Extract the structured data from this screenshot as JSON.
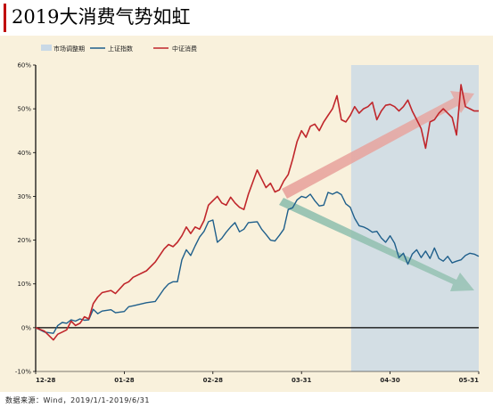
{
  "title": "2019大消费气势如虹",
  "source": "数据来源：Wind，2019/1/1-2019/6/31",
  "colors": {
    "title_accent": "#c00000",
    "plot_background": "#f9f1dc",
    "highlight_band": "#c9d9e6",
    "shanghai": "#1f5f8b",
    "consumer": "#c0262b",
    "arrow_up": "#e8a29c",
    "arrow_down": "#8fbfae"
  },
  "chart_data": {
    "type": "line",
    "title": "2019大消费气势如虹",
    "xlabel": "",
    "ylabel": "",
    "ylim": [
      -10,
      60
    ],
    "yticks": [
      -10,
      0,
      10,
      20,
      30,
      40,
      50,
      60
    ],
    "ytick_labels": [
      "-10%",
      "0%",
      "10%",
      "20%",
      "30%",
      "40%",
      "50%",
      "60%"
    ],
    "xtick_labels": [
      "12-28",
      "01-28",
      "02-28",
      "03-31",
      "04-30",
      "05-31"
    ],
    "xlim": [
      0,
      100
    ],
    "xtick_positions": [
      0,
      20,
      40,
      60,
      80,
      100
    ],
    "grid": false,
    "legend_position": "top-left",
    "shaded_region": {
      "label": "市场调整期",
      "x_start": 71.2,
      "x_end": 100
    },
    "series": [
      {
        "name": "上证指数",
        "x": [
          0,
          2,
          4,
          5,
          6,
          7,
          8,
          9,
          10,
          11,
          12,
          13,
          14,
          15,
          17,
          18,
          20,
          21,
          22,
          25,
          27,
          29,
          30,
          31,
          32,
          33,
          34,
          35,
          36,
          37,
          38,
          39,
          40,
          41,
          42,
          43,
          44,
          45,
          46,
          47,
          48,
          50,
          51,
          52,
          53,
          54,
          55,
          56,
          57,
          58,
          59,
          60,
          61,
          62,
          63,
          64,
          65,
          66,
          67,
          68,
          69,
          70,
          71,
          72,
          73,
          74,
          75,
          76,
          77,
          78,
          79,
          80,
          81,
          82,
          83,
          84,
          85,
          86,
          87,
          88,
          89,
          90,
          91,
          92,
          93,
          94,
          95,
          96,
          97,
          98,
          99,
          100
        ],
        "values": [
          0,
          -1,
          -1.3,
          0.5,
          1.2,
          1.0,
          1.8,
          1.5,
          2.0,
          1.7,
          1.8,
          4.2,
          3.2,
          3.8,
          4.1,
          3.4,
          3.7,
          4.8,
          5.0,
          5.7,
          6.0,
          8.9,
          10.0,
          10.5,
          10.5,
          15.5,
          17.8,
          16.5,
          18.7,
          20.7,
          22.0,
          24.2,
          24.6,
          19.5,
          20.4,
          21.8,
          23.0,
          24.0,
          21.9,
          22.5,
          24.0,
          24.2,
          22.5,
          21.3,
          20.0,
          19.8,
          21.1,
          22.5,
          27.0,
          27.4,
          29.2,
          30.0,
          29.7,
          30.5,
          29.0,
          27.8,
          28.0,
          30.9,
          30.5,
          31.0,
          30.4,
          28.3,
          27.5,
          25.0,
          23.3,
          23.0,
          22.5,
          21.8,
          22.0,
          20.5,
          19.5,
          21.0,
          19.3,
          16.0,
          17.0,
          14.5,
          16.8,
          17.8,
          16.0,
          17.5,
          15.8,
          18.2,
          15.8,
          15.2,
          16.3,
          14.8,
          15.2,
          15.5,
          16.5,
          17.0,
          16.8,
          16.3
        ]
      },
      {
        "name": "中证消费",
        "x": [
          0,
          2,
          4,
          5,
          6,
          7,
          8,
          9,
          10,
          11,
          12,
          13,
          14,
          15,
          17,
          18,
          20,
          21,
          22,
          25,
          27,
          29,
          30,
          31,
          32,
          33,
          34,
          35,
          36,
          37,
          38,
          39,
          40,
          41,
          42,
          43,
          44,
          45,
          46,
          47,
          48,
          50,
          51,
          52,
          53,
          54,
          55,
          56,
          57,
          58,
          59,
          60,
          61,
          62,
          63,
          64,
          65,
          66,
          67,
          68,
          69,
          70,
          71,
          72,
          73,
          74,
          75,
          76,
          77,
          78,
          79,
          80,
          81,
          82,
          83,
          84,
          85,
          86,
          87,
          88,
          89,
          90,
          91,
          92,
          93,
          94,
          95,
          96,
          97,
          98,
          99,
          100
        ],
        "values": [
          0,
          -0.8,
          -2.8,
          -1.5,
          -1.0,
          -0.5,
          1.5,
          0.5,
          1.0,
          2.5,
          2.0,
          5.5,
          7.0,
          8.0,
          8.5,
          7.8,
          10.0,
          10.5,
          11.5,
          13.0,
          15.0,
          18.0,
          19.0,
          18.5,
          19.5,
          21.0,
          23.0,
          21.5,
          23.0,
          22.5,
          24.5,
          28.0,
          29.0,
          30.0,
          28.5,
          28.0,
          29.8,
          28.5,
          27.5,
          27.0,
          30.5,
          36.0,
          34.0,
          32.0,
          33.0,
          31.0,
          31.5,
          33.5,
          35.0,
          38.5,
          42.5,
          45.0,
          43.5,
          46.0,
          46.5,
          45.0,
          47.0,
          48.5,
          50.0,
          53.0,
          47.5,
          47.0,
          48.5,
          50.5,
          49.0,
          50.0,
          50.5,
          51.5,
          47.5,
          49.5,
          50.8,
          51.0,
          50.5,
          49.5,
          50.5,
          52.0,
          49.5,
          47.5,
          45.5,
          41.0,
          47.0,
          47.5,
          49.0,
          50.0,
          49.0,
          48.0,
          44.0,
          55.5,
          50.5,
          50.0,
          49.5,
          49.5
        ]
      }
    ]
  }
}
